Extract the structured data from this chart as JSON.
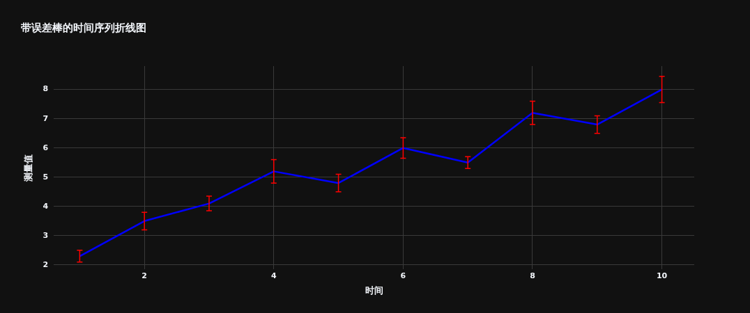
{
  "chart_data": {
    "type": "line",
    "title": "带误差棒的时间序列折线图",
    "xlabel": "时间",
    "ylabel": "测量值",
    "x": [
      1,
      2,
      3,
      4,
      5,
      6,
      7,
      8,
      9,
      10
    ],
    "series": [
      {
        "color": "#0000ff",
        "values": [
          2.3,
          3.5,
          4.1,
          5.2,
          4.8,
          6.0,
          5.5,
          7.2,
          6.8,
          8.0
        ],
        "errors": [
          0.2,
          0.3,
          0.25,
          0.4,
          0.3,
          0.35,
          0.2,
          0.4,
          0.3,
          0.45
        ]
      }
    ],
    "xlim": [
      0.6,
      10.5
    ],
    "xticks": [
      2,
      4,
      6,
      8,
      10
    ],
    "ylim": [
      1.85,
      8.8
    ],
    "yticks": [
      2,
      3,
      4,
      5,
      6,
      7,
      8
    ],
    "grid": true,
    "legend": false,
    "marker": "none",
    "line_style": "solid"
  }
}
